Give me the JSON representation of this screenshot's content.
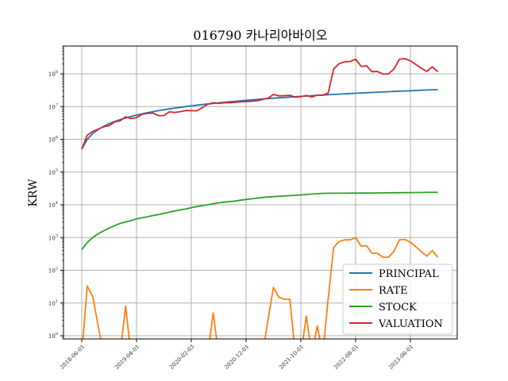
{
  "chart_data": {
    "type": "line",
    "title": "016790 카나리아바이오",
    "xlabel": "",
    "ylabel": "KRW",
    "yscale": "log",
    "ylim": [
      0.8,
      700000000.0
    ],
    "grid": true,
    "legend_placement": "lower-right",
    "x_tick_labels": [
      "2018-06-01",
      "2019-04-01",
      "2020-02-03",
      "2020-12-01",
      "2021-10-01",
      "2022-08-01",
      "2023-06-01"
    ],
    "x_tick_months": [
      "2018-06",
      "2019-04",
      "2020-02",
      "2020-12",
      "2021-10",
      "2022-08",
      "2023-06"
    ],
    "y_tick_labels": [
      {
        "base": "10",
        "exp": "0"
      },
      {
        "base": "10",
        "exp": "1"
      },
      {
        "base": "10",
        "exp": "2"
      },
      {
        "base": "10",
        "exp": "3"
      },
      {
        "base": "10",
        "exp": "4"
      },
      {
        "base": "10",
        "exp": "5"
      },
      {
        "base": "10",
        "exp": "6"
      },
      {
        "base": "10",
        "exp": "7"
      },
      {
        "base": "10",
        "exp": "8"
      }
    ],
    "x_start": "2018-06",
    "x_frequency": "monthly",
    "series": [
      {
        "name": "PRINCIPAL",
        "color": "#1f77b4",
        "values": [
          500000,
          1000000,
          1500000,
          2000000,
          2500000,
          3000000,
          3500000,
          4000000,
          4500000,
          5000000,
          5500000,
          6000000,
          6500000,
          7000000,
          7500000,
          8000000,
          8500000,
          9000000,
          9500000,
          10000000,
          10500000,
          11000000,
          11500000,
          12000000,
          12500000,
          13000000,
          13500000,
          14000000,
          14500000,
          15000000,
          15500000,
          16000000,
          16500000,
          17000000,
          17500000,
          18000000,
          18500000,
          19000000,
          19500000,
          20000000,
          20500000,
          21000000,
          21500000,
          22000000,
          22500000,
          23000000,
          23500000,
          24000000,
          24500000,
          25000000,
          25500000,
          26000000,
          26500000,
          27000000,
          27500000,
          28000000,
          28500000,
          29000000,
          29500000,
          30000000,
          30500000,
          31000000,
          31500000,
          32000000,
          32500000,
          33000000
        ]
      },
      {
        "name": "RATE",
        "color": "#ff7f0e",
        "values": [
          0,
          33,
          16,
          2,
          -4,
          -13,
          -3,
          -8,
          8,
          -14,
          -16,
          -3,
          -5,
          -10,
          -29,
          -34,
          -19,
          -27,
          -26,
          -24,
          -29,
          -33,
          -20,
          -2,
          5,
          -4,
          -4,
          -7,
          -7,
          -7,
          -8,
          -9,
          -9,
          -3,
          3,
          30,
          15,
          13,
          13,
          -3,
          -2,
          4,
          -9,
          2,
          -2,
          14,
          500,
          750,
          850,
          850,
          1000,
          550,
          560,
          330,
          330,
          250,
          250,
          380,
          850,
          870,
          720,
          520,
          370,
          270,
          400,
          250
        ]
      },
      {
        "name": "STOCK",
        "color": "#2ca02c",
        "values": [
          430,
          700,
          1000,
          1300,
          1600,
          1950,
          2300,
          2700,
          3000,
          3300,
          3700,
          4000,
          4300,
          4700,
          5000,
          5500,
          6000,
          6500,
          7000,
          7500,
          8200,
          8800,
          9400,
          10000,
          10800,
          11500,
          12000,
          12500,
          13000,
          13800,
          14500,
          15200,
          16000,
          16700,
          17300,
          17800,
          18200,
          18600,
          19000,
          19500,
          20000,
          20600,
          21200,
          21800,
          22300,
          22500,
          22600,
          22600,
          22600,
          22700,
          22700,
          22800,
          22800,
          22900,
          23000,
          23100,
          23200,
          23300,
          23400,
          23500,
          23600,
          23700,
          23800,
          23900,
          24000,
          24000
        ]
      },
      {
        "name": "VALUATION",
        "color": "#d62728",
        "values": [
          500000,
          1330000,
          1740000,
          2040000,
          2400000,
          2600000,
          3400000,
          3700000,
          4860000,
          4300000,
          4600000,
          5800000,
          6200000,
          6300000,
          5300000,
          5300000,
          6900000,
          6600000,
          7000000,
          7600000,
          7500000,
          7400000,
          9200000,
          11800000,
          13100000,
          12500000,
          13000000,
          13000000,
          13500000,
          14000000,
          14200000,
          14500000,
          15000000,
          16500000,
          18000000,
          23400000,
          21300000,
          21500000,
          22000000,
          19500000,
          20000000,
          21800000,
          19500000,
          22400000,
          22000000,
          26200000,
          141000000,
          204000000,
          233000000,
          238000000,
          280000000,
          169000000,
          175000000,
          116000000,
          118000000,
          98000000,
          100000000,
          139000000,
          280000000,
          290000000,
          250000000,
          192000000,
          148000000,
          118000000,
          163000000,
          116000000
        ]
      }
    ]
  }
}
